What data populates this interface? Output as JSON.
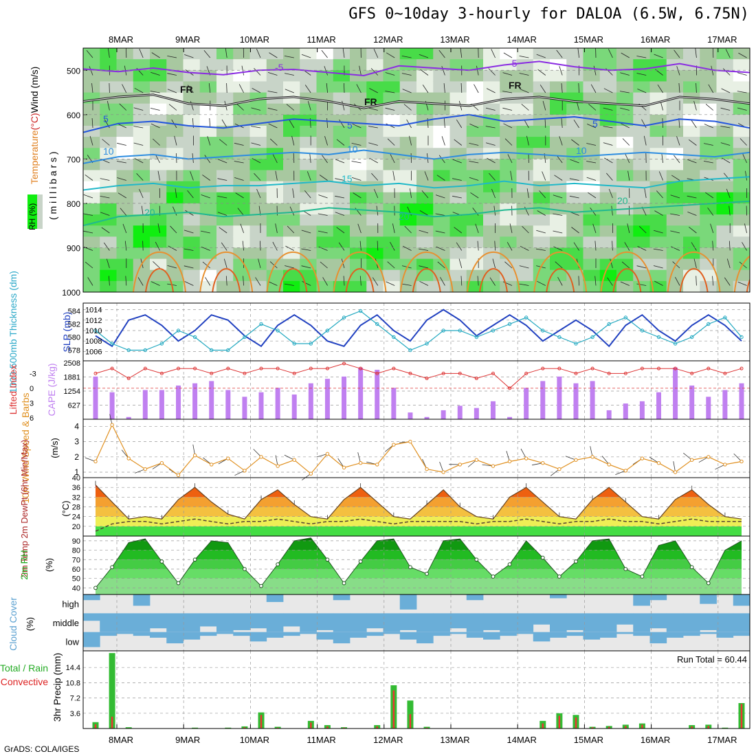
{
  "title": "GFS 0~10day 3-hourly for DALOA (6.5W, 6.75N)",
  "footer": "GrADS: COLA/IGES",
  "chart_data": [
    {
      "type": "heatmap",
      "panel": "upper-air",
      "ylabel_parts": [
        {
          "text": "Wind (m/s)",
          "color": "#000000"
        },
        {
          "text": "(°C)",
          "color": "#cc2222"
        },
        {
          "text": "Temperature",
          "color": "#e08020"
        }
      ],
      "ylabel2": "( m i l l i b a r s )",
      "rh_label": "RH (%)",
      "y_ticks": [
        500,
        600,
        700,
        800,
        900,
        1000
      ],
      "ylim": [
        1000,
        450
      ],
      "x_ticks": [
        "8MAR",
        "9MAR",
        "10MAR",
        "11MAR",
        "12MAR",
        "13MAR",
        "14MAR",
        "15MAR",
        "16MAR",
        "17MAR"
      ],
      "contour_labels": [
        "-5",
        "-5",
        "FR",
        "FR",
        "FR",
        "5",
        "5",
        "5",
        "10",
        "10",
        "10",
        "15",
        "20",
        "20",
        "20"
      ],
      "isotherms": [
        {
          "label": "-5",
          "color": "#8a2be2",
          "level_mb": [
            497,
            503,
            495,
            505,
            510,
            500,
            498,
            505,
            512,
            490,
            495,
            500,
            488,
            480,
            492,
            500,
            497,
            485,
            500,
            505
          ]
        },
        {
          "label": "FR",
          "color": "#111111",
          "level_mb": [
            570,
            560,
            555,
            575,
            580,
            565,
            560,
            570,
            585,
            570,
            575,
            580,
            565,
            560,
            570,
            575,
            580,
            560,
            565,
            575
          ]
        },
        {
          "label": "5",
          "color": "#2255dd",
          "level_mb": [
            640,
            620,
            615,
            625,
            630,
            620,
            610,
            615,
            620,
            625,
            610,
            600,
            615,
            610,
            605,
            615,
            625,
            610,
            615,
            630
          ]
        },
        {
          "label": "10",
          "color": "#2c8ce0",
          "level_mb": [
            710,
            695,
            690,
            700,
            695,
            690,
            685,
            690,
            680,
            690,
            700,
            690,
            685,
            690,
            695,
            690,
            685,
            690,
            695,
            685
          ]
        },
        {
          "label": "15",
          "color": "#20b8c8",
          "level_mb": [
            770,
            760,
            755,
            765,
            760,
            760,
            755,
            750,
            760,
            755,
            765,
            760,
            750,
            760,
            755,
            760,
            765,
            750,
            745,
            740
          ]
        },
        {
          "label": "20",
          "color": "#20b890",
          "level_mb": [
            850,
            830,
            825,
            820,
            830,
            825,
            820,
            810,
            815,
            820,
            830,
            825,
            815,
            810,
            820,
            815,
            810,
            805,
            800,
            795
          ]
        }
      ]
    },
    {
      "type": "line",
      "panel": "thickness-slp",
      "ylabel": "1000-500mb Thickness (dm)",
      "ylabel_right": "SLP (mb)",
      "y_ticks_left": [
        578,
        580,
        582,
        584
      ],
      "y_ticks_right": [
        1006,
        1008,
        1010,
        1012,
        1014
      ],
      "series": [
        {
          "name": "SLP",
          "color": "#2040c0",
          "values": [
            1009,
            1007,
            1012,
            1013,
            1011,
            1008,
            1010,
            1013,
            1012,
            1009,
            1007,
            1011,
            1013,
            1011,
            1008,
            1007,
            1011,
            1013,
            1010,
            1008,
            1012,
            1014,
            1012,
            1009,
            1011,
            1013,
            1011,
            1008,
            1010,
            1012,
            1010,
            1007,
            1011,
            1013,
            1010,
            1008,
            1011,
            1013,
            1011,
            1008
          ]
        },
        {
          "name": "Thickness",
          "color": "#20a8c0",
          "values": [
            581,
            579,
            578,
            578,
            579,
            581,
            580,
            578,
            578,
            580,
            582,
            581,
            579,
            579,
            581,
            583,
            584,
            582,
            580,
            578,
            579,
            581,
            581,
            580,
            581,
            582,
            583,
            581,
            580,
            579,
            580,
            582,
            583,
            581,
            580,
            579,
            580,
            582,
            583,
            580
          ]
        }
      ]
    },
    {
      "type": "bar",
      "panel": "cape-li",
      "ylabel": "Lifted Index",
      "ylabel_right": "CAPE (J/kg)",
      "y_ticks_left": [
        "-3",
        "0",
        "3",
        "6"
      ],
      "y_ticks_right": [
        "627",
        "1254",
        "1881",
        "2508"
      ],
      "series": [
        {
          "name": "CAPE",
          "color": "#c080f0",
          "values": [
            1900,
            1200,
            100,
            1300,
            1300,
            1500,
            1600,
            1700,
            1300,
            1000,
            1200,
            1400,
            1100,
            1600,
            1800,
            1900,
            2300,
            2200,
            1400,
            300,
            100,
            400,
            600,
            500,
            800,
            100,
            1400,
            1700,
            1900,
            1600,
            1700,
            400,
            700,
            800,
            1200,
            2300,
            1500,
            1000,
            1300,
            1600
          ]
        },
        {
          "name": "Lifted Index",
          "color": "#dd3333",
          "values": [
            -3,
            -4,
            -2,
            -4,
            -3,
            -4,
            -4,
            -3,
            -4,
            -3,
            -4,
            -4,
            -3,
            -4,
            -4,
            -5,
            -4,
            -3,
            -4,
            -3,
            -2,
            -3,
            -3,
            -2,
            -3,
            0,
            -3,
            -4,
            -4,
            -3,
            -4,
            -3,
            -3,
            -4,
            -4,
            -4,
            -3,
            -4,
            -3,
            -4
          ]
        }
      ]
    },
    {
      "type": "line",
      "panel": "10m-wind",
      "ylabel": "10m Wind Speed & Barbs",
      "yunit": "(m/s)",
      "y_ticks": [
        1,
        2,
        3,
        4
      ],
      "series": [
        {
          "name": "10m Wind Speed",
          "color": "#e09020",
          "values": [
            1.7,
            4.1,
            1.9,
            1.2,
            1.6,
            0.8,
            2.1,
            1.5,
            1.9,
            1.1,
            2.0,
            1.4,
            1.8,
            0.9,
            2.2,
            1.3,
            1.6,
            1.5,
            2.8,
            3.0,
            1.2,
            1.0,
            1.5,
            1.8,
            1.4,
            1.7,
            1.9,
            1.6,
            1.2,
            1.8,
            2.0,
            1.5,
            1.1,
            1.9,
            1.6,
            1.0,
            1.8,
            2.0,
            1.5,
            1.7
          ]
        }
      ]
    },
    {
      "type": "area",
      "panel": "2m-temp",
      "ylabel": "2m Temp 2m DewPt (6hr Min/Max)",
      "yunit": "(°C)",
      "y_ticks": [
        20,
        24,
        28,
        32,
        36,
        40
      ],
      "series": [
        {
          "name": "2m Temp",
          "values": [
            37,
            30,
            23,
            24,
            23,
            31,
            36,
            30,
            25,
            23,
            31,
            35,
            29,
            24,
            23,
            31,
            36,
            30,
            24,
            23,
            29,
            35,
            28,
            24,
            23,
            32,
            36,
            30,
            24,
            23,
            31,
            36,
            30,
            24,
            23,
            31,
            35,
            29,
            24,
            23
          ]
        },
        {
          "name": "2m DewPt",
          "values": [
            18,
            21,
            22,
            22,
            21,
            22,
            23,
            22,
            21,
            22,
            22,
            23,
            22,
            21,
            22,
            22,
            23,
            22,
            21,
            22,
            22,
            22,
            22,
            21,
            22,
            22,
            23,
            22,
            21,
            22,
            22,
            23,
            22,
            22,
            21,
            22,
            23,
            22,
            22,
            22
          ]
        }
      ]
    },
    {
      "type": "area",
      "panel": "2m-rh",
      "ylabel": "2m RH",
      "yunit": "(%)",
      "y_ticks": [
        40,
        50,
        60,
        70,
        80,
        90
      ],
      "series": [
        {
          "name": "2m RH",
          "values": [
            40,
            62,
            88,
            92,
            68,
            45,
            70,
            90,
            88,
            60,
            42,
            65,
            90,
            93,
            70,
            45,
            68,
            90,
            92,
            62,
            55,
            90,
            92,
            70,
            52,
            65,
            90,
            72,
            52,
            68,
            90,
            92,
            60,
            52,
            85,
            90,
            62,
            45,
            80,
            90
          ]
        }
      ]
    },
    {
      "type": "heatmap",
      "panel": "cloud-cover",
      "ylabel": "Cloud Cover",
      "yunit": "(%)",
      "rows": [
        "high",
        "middle",
        "low"
      ],
      "series": [
        {
          "name": "high",
          "values": [
            30,
            0,
            0,
            60,
            0,
            0,
            0,
            0,
            0,
            0,
            0,
            40,
            0,
            0,
            0,
            30,
            0,
            0,
            0,
            80,
            0,
            0,
            0,
            30,
            0,
            0,
            0,
            0,
            20,
            0,
            0,
            0,
            0,
            60,
            30,
            0,
            0,
            50,
            0,
            60
          ]
        },
        {
          "name": "middle",
          "values": [
            40,
            100,
            100,
            100,
            80,
            100,
            100,
            70,
            100,
            90,
            80,
            100,
            70,
            100,
            90,
            100,
            100,
            80,
            100,
            90,
            100,
            100,
            80,
            100,
            90,
            100,
            100,
            60,
            100,
            90,
            100,
            100,
            60,
            100,
            80,
            100,
            100,
            90,
            100,
            100
          ]
        },
        {
          "name": "low",
          "values": [
            80,
            20,
            10,
            20,
            30,
            60,
            40,
            20,
            10,
            20,
            50,
            30,
            20,
            10,
            40,
            60,
            30,
            20,
            10,
            40,
            60,
            20,
            10,
            30,
            40,
            20,
            10,
            50,
            30,
            20,
            40,
            30,
            10,
            20,
            60,
            30,
            20,
            10,
            30,
            20
          ]
        }
      ]
    },
    {
      "type": "bar",
      "panel": "precip",
      "ylabel_parts": [
        {
          "text": "Total / Rain",
          "color": "#22aa22"
        },
        {
          "text": "Convective",
          "color": "#dd2222"
        }
      ],
      "ylabel": "3hr Precip (mm)",
      "y_ticks": [
        "3.6",
        "7.2",
        "10.8",
        "14.4"
      ],
      "run_total": "Run Total = 60.44",
      "series": [
        {
          "name": "Total",
          "color": "#33bb33",
          "values": [
            1.5,
            17.8,
            0.3,
            0,
            0,
            0,
            0.2,
            0,
            0.2,
            0.5,
            3.8,
            0.4,
            0,
            1.8,
            0.8,
            0.3,
            0,
            0.8,
            10.2,
            6.6,
            0.4,
            0,
            0,
            0,
            0,
            0,
            0,
            1.8,
            3.6,
            3.2,
            0.4,
            0.6,
            0.9,
            1.2,
            0,
            0,
            0.8,
            0.9,
            0.2,
            6.0
          ]
        },
        {
          "name": "Convective",
          "color": "#ee3333",
          "values": [
            1.0,
            2.8,
            0.1,
            0,
            0,
            0,
            0.1,
            0,
            0.1,
            0.3,
            3.2,
            0.2,
            0,
            1.4,
            0.5,
            0.2,
            0,
            0.5,
            9.0,
            3.4,
            0.2,
            0,
            0,
            0,
            0,
            0,
            0,
            1.2,
            3.0,
            2.6,
            0.3,
            0.4,
            0.6,
            0.9,
            0,
            0,
            0.5,
            0.6,
            0.1,
            5.8
          ]
        }
      ]
    }
  ]
}
